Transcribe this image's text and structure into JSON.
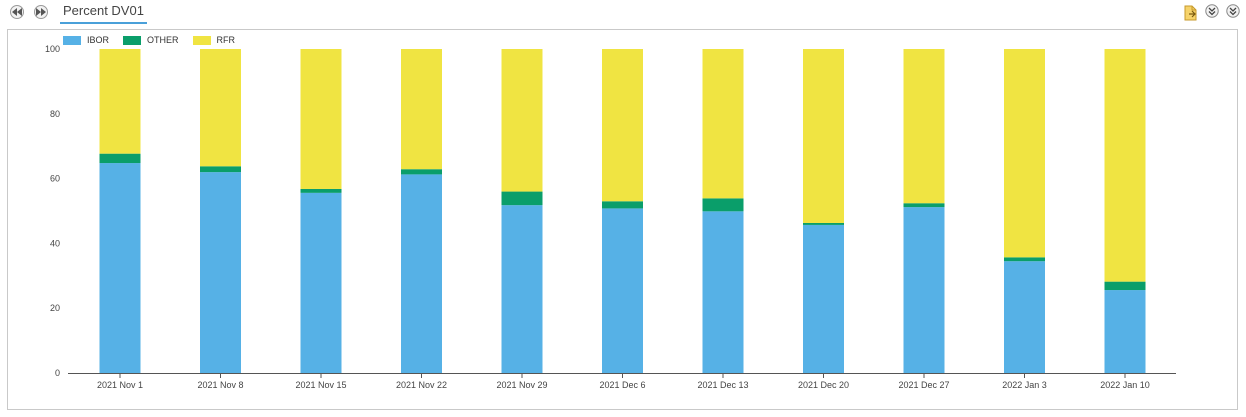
{
  "tab": {
    "label": "Percent DV01"
  },
  "colors": {
    "IBOR": "#56b1e6",
    "OTHER": "#0a9e6a",
    "RFR": "#f0e442",
    "accent": "#4aa0d9"
  },
  "icons": {
    "prev": "rewind-icon",
    "next": "fast-forward-icon",
    "export": "export-icon",
    "collapse": "collapse-icon",
    "expand": "expand-icon"
  },
  "legend": [
    "IBOR",
    "OTHER",
    "RFR"
  ],
  "chart_data": {
    "type": "bar",
    "stacked": true,
    "categories": [
      "2021 Nov 1",
      "2021 Nov 8",
      "2021 Nov 15",
      "2021 Nov 22",
      "2021 Nov 29",
      "2021 Dec 6",
      "2021 Dec 13",
      "2021 Dec 20",
      "2021 Dec 27",
      "2022 Jan 3",
      "2022 Jan 10"
    ],
    "series": [
      {
        "name": "IBOR",
        "values": [
          64.8,
          62,
          55.6,
          61.3,
          51.8,
          50.8,
          49.9,
          45.7,
          51.2,
          34.5,
          25.6
        ]
      },
      {
        "name": "OTHER",
        "values": [
          2.9,
          1.8,
          1.2,
          1.6,
          4.2,
          2.2,
          4.0,
          0.6,
          1.2,
          1.2,
          2.6
        ]
      },
      {
        "name": "RFR",
        "values": [
          32.3,
          36.2,
          43.2,
          37.1,
          44.0,
          47.0,
          46.1,
          53.7,
          47.6,
          64.3,
          71.8
        ]
      }
    ],
    "yticks": [
      0,
      20,
      40,
      60,
      80,
      100
    ],
    "ylim": [
      0,
      100
    ],
    "legend_position": "top-left",
    "grid": false
  }
}
